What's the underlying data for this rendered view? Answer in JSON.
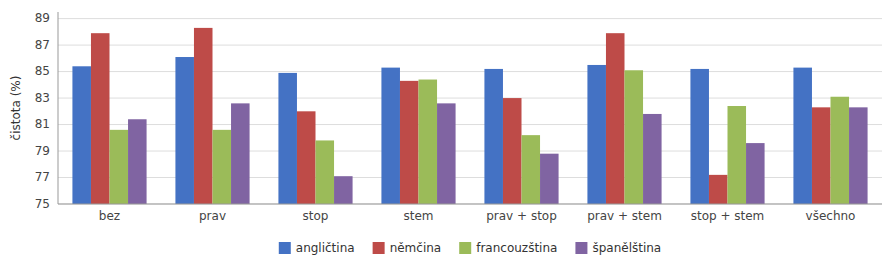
{
  "chart_data": {
    "type": "bar",
    "categories": [
      "bez",
      "prav",
      "stop",
      "stem",
      "prav + stop",
      "prav + stem",
      "stop + stem",
      "všechno"
    ],
    "series": [
      {
        "name": "angličtina",
        "color": "#4472C4",
        "values": [
          85.4,
          86.1,
          84.9,
          85.3,
          85.2,
          85.5,
          85.2,
          85.3
        ]
      },
      {
        "name": "němčina",
        "color": "#BE4B48",
        "values": [
          87.9,
          88.3,
          82.0,
          84.3,
          83.0,
          87.9,
          77.2,
          82.3
        ]
      },
      {
        "name": "francouzština",
        "color": "#9BBB59",
        "values": [
          80.6,
          80.6,
          79.8,
          84.4,
          80.2,
          85.1,
          82.4,
          83.1
        ]
      },
      {
        "name": "španělština",
        "color": "#8064A2",
        "values": [
          81.4,
          82.6,
          77.1,
          82.6,
          78.8,
          81.8,
          79.6,
          82.3
        ]
      }
    ],
    "ylabel": "čistota (%)",
    "ylim": [
      75,
      89.5
    ],
    "yticks": [
      75,
      77,
      79,
      81,
      83,
      85,
      87,
      89
    ],
    "grid": true,
    "legend": "bottom"
  }
}
